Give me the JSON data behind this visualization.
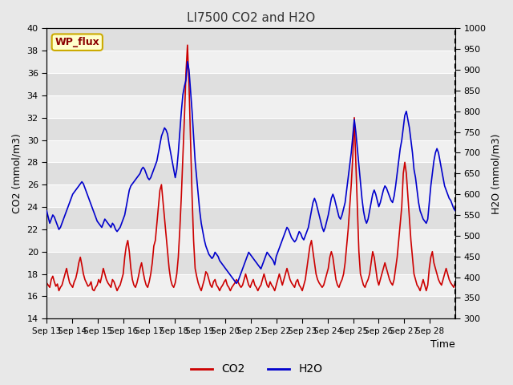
{
  "title": "LI7500 CO2 and H2O",
  "xlabel": "Time",
  "ylabel_left": "CO2 (mmol/m3)",
  "ylabel_right": "H2O (mmol/m3)",
  "ylim_left": [
    14,
    40
  ],
  "ylim_right": [
    300,
    1000
  ],
  "site_label": "WP_flux",
  "co2_color": "#cc0000",
  "h2o_color": "#0000cc",
  "legend_co2": "CO2",
  "legend_h2o": "H2O",
  "background_color": "#e8e8e8",
  "plot_bg_color": "#f0f0f0",
  "title_color": "#333333",
  "co2_data": [
    17.2,
    17.0,
    16.8,
    17.5,
    17.8,
    17.3,
    16.9,
    17.1,
    16.5,
    16.8,
    17.0,
    17.5,
    18.0,
    18.5,
    17.8,
    17.2,
    17.0,
    16.8,
    17.3,
    17.6,
    18.2,
    19.0,
    19.5,
    18.8,
    18.0,
    17.5,
    17.2,
    16.9,
    17.0,
    17.3,
    16.6,
    16.5,
    16.8,
    17.0,
    17.5,
    17.2,
    17.8,
    18.5,
    18.0,
    17.5,
    17.2,
    17.0,
    16.8,
    17.5,
    17.3,
    16.9,
    16.5,
    16.8,
    17.0,
    17.5,
    18.0,
    19.5,
    20.5,
    21.0,
    20.0,
    18.5,
    17.5,
    17.0,
    16.8,
    17.2,
    17.8,
    18.5,
    19.0,
    18.2,
    17.5,
    17.0,
    16.8,
    17.3,
    18.0,
    19.0,
    20.5,
    21.0,
    22.5,
    24.0,
    25.5,
    26.0,
    24.5,
    23.0,
    21.5,
    20.0,
    18.5,
    17.5,
    17.0,
    16.8,
    17.2,
    18.0,
    19.5,
    22.0,
    25.0,
    28.5,
    32.0,
    36.0,
    38.5,
    35.0,
    30.0,
    25.0,
    21.0,
    18.5,
    17.8,
    17.2,
    16.8,
    16.5,
    17.0,
    17.5,
    18.2,
    18.0,
    17.5,
    17.0,
    16.8,
    17.3,
    17.5,
    17.0,
    16.8,
    16.5,
    16.8,
    17.0,
    17.3,
    17.5,
    17.0,
    16.8,
    16.5,
    16.8,
    17.0,
    17.2,
    17.5,
    17.3,
    17.0,
    16.8,
    17.0,
    17.5,
    18.0,
    17.5,
    17.0,
    16.8,
    17.2,
    17.5,
    17.0,
    16.8,
    16.5,
    16.8,
    17.0,
    17.5,
    18.0,
    17.5,
    17.0,
    16.8,
    17.3,
    17.0,
    16.8,
    16.5,
    17.0,
    17.5,
    18.0,
    17.5,
    17.0,
    17.5,
    18.0,
    18.5,
    18.0,
    17.5,
    17.2,
    17.0,
    16.8,
    17.3,
    17.5,
    17.0,
    16.8,
    16.5,
    17.0,
    17.5,
    18.5,
    19.5,
    20.5,
    21.0,
    20.0,
    19.0,
    18.0,
    17.5,
    17.2,
    17.0,
    16.8,
    17.0,
    17.5,
    18.0,
    18.5,
    19.5,
    20.0,
    19.5,
    18.5,
    17.5,
    17.0,
    16.8,
    17.2,
    17.5,
    18.0,
    19.0,
    20.5,
    22.0,
    24.0,
    26.0,
    28.5,
    32.0,
    28.0,
    24.0,
    20.0,
    18.0,
    17.5,
    17.0,
    16.8,
    17.2,
    17.5,
    18.0,
    19.0,
    20.0,
    19.5,
    18.5,
    17.5,
    17.0,
    17.5,
    18.0,
    18.5,
    19.0,
    18.5,
    18.0,
    17.5,
    17.2,
    17.0,
    17.5,
    18.5,
    19.5,
    21.0,
    22.5,
    24.0,
    27.0,
    28.0,
    27.0,
    25.0,
    23.0,
    21.0,
    19.5,
    18.0,
    17.5,
    17.0,
    16.8,
    16.5,
    17.0,
    17.5,
    17.0,
    16.5,
    17.0,
    18.5,
    19.5,
    20.0,
    19.0,
    18.5,
    18.0,
    17.5,
    17.2,
    17.0,
    17.5,
    18.0,
    18.5,
    18.0,
    17.5,
    17.2,
    17.0,
    16.8,
    17.3
  ],
  "h2o_data": [
    560,
    545,
    530,
    540,
    550,
    545,
    535,
    525,
    515,
    520,
    530,
    540,
    550,
    560,
    570,
    580,
    590,
    600,
    605,
    610,
    615,
    620,
    625,
    630,
    625,
    615,
    605,
    595,
    585,
    575,
    565,
    555,
    545,
    535,
    530,
    525,
    520,
    530,
    540,
    535,
    530,
    525,
    520,
    530,
    525,
    515,
    510,
    515,
    520,
    530,
    540,
    550,
    570,
    590,
    610,
    620,
    625,
    630,
    635,
    640,
    645,
    650,
    660,
    665,
    660,
    650,
    640,
    635,
    640,
    650,
    660,
    670,
    680,
    700,
    720,
    740,
    750,
    760,
    755,
    745,
    720,
    700,
    680,
    660,
    640,
    660,
    700,
    750,
    800,
    840,
    860,
    875,
    920,
    900,
    850,
    800,
    740,
    680,
    640,
    600,
    560,
    530,
    510,
    490,
    475,
    465,
    455,
    450,
    445,
    450,
    460,
    455,
    450,
    440,
    435,
    430,
    425,
    420,
    415,
    410,
    405,
    400,
    395,
    390,
    385,
    390,
    400,
    410,
    420,
    430,
    440,
    450,
    460,
    455,
    450,
    445,
    440,
    435,
    430,
    425,
    420,
    430,
    440,
    450,
    460,
    455,
    450,
    445,
    440,
    430,
    450,
    460,
    470,
    480,
    490,
    500,
    510,
    520,
    515,
    505,
    495,
    490,
    485,
    490,
    500,
    510,
    505,
    495,
    490,
    500,
    510,
    520,
    540,
    560,
    580,
    590,
    580,
    565,
    550,
    535,
    520,
    510,
    520,
    535,
    550,
    570,
    590,
    600,
    590,
    575,
    560,
    545,
    540,
    550,
    565,
    580,
    610,
    640,
    670,
    700,
    740,
    780,
    750,
    710,
    670,
    630,
    590,
    560,
    540,
    530,
    540,
    560,
    580,
    600,
    610,
    600,
    585,
    570,
    580,
    595,
    610,
    620,
    615,
    605,
    595,
    585,
    580,
    595,
    620,
    650,
    680,
    710,
    730,
    760,
    790,
    800,
    780,
    760,
    730,
    700,
    660,
    640,
    610,
    580,
    560,
    550,
    540,
    535,
    530,
    540,
    580,
    620,
    650,
    680,
    700,
    710,
    700,
    680,
    660,
    640,
    620,
    610,
    600,
    590,
    585,
    575,
    565,
    560
  ],
  "xtick_labels": [
    "Sep 13",
    "Sep 14",
    "Sep 15",
    "Sep 16",
    "Sep 17",
    "Sep 18",
    "Sep 19",
    "Sep 20",
    "Sep 21",
    "Sep 22",
    "Sep 23",
    "Sep 24",
    "Sep 25",
    "Sep 26",
    "Sep 27",
    "Sep 28"
  ],
  "n_days": 16
}
